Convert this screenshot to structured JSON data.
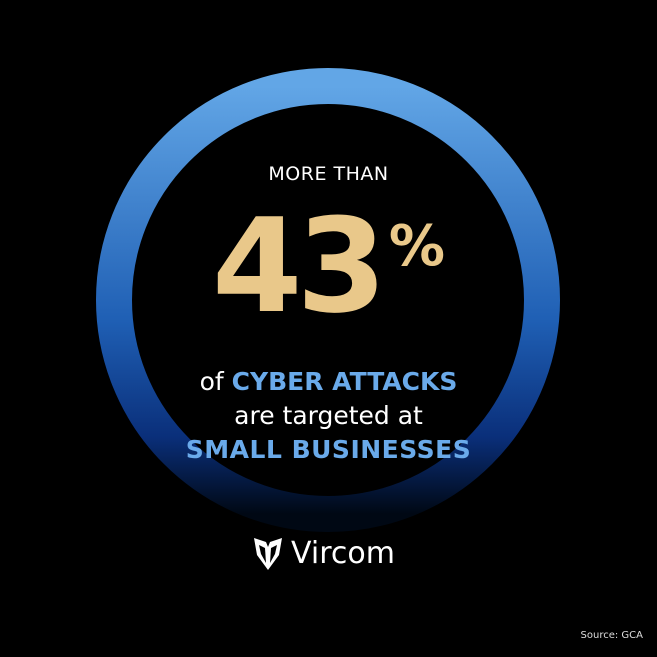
{
  "headline": {
    "prefix": "MORE THAN",
    "number": "43",
    "unit": "%"
  },
  "body": {
    "line1_pre": "of ",
    "line1_highlight": "CYBER ATTACKS",
    "line2": "are targeted at",
    "line3_highlight": "SMALL BUSINESSES"
  },
  "brand": {
    "name": "Vircom",
    "logo_icon": "vircom-shield-logo"
  },
  "source": "Source: GCA",
  "colors": {
    "background": "#000000",
    "number": "#e9c88a",
    "highlight": "#6aaaea",
    "ring_top": "#62a6e6",
    "ring_bottom": "#0a2a6e"
  }
}
